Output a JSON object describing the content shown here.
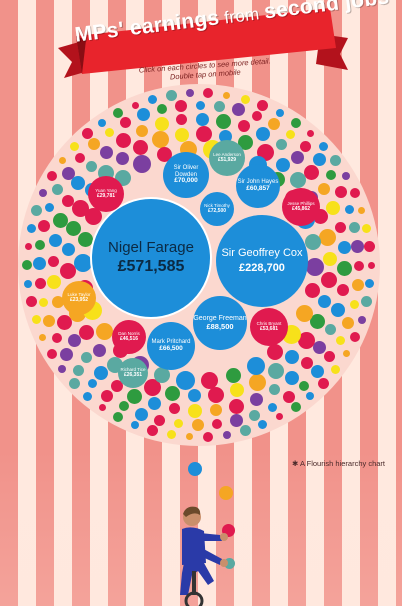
{
  "title_pre": "MPs' ",
  "title_bold": "earnings",
  "title_from": " from ",
  "title_post": "second jobs",
  "subtitle_line1": "Click on each circles to see more detail.",
  "subtitle_line2": "Double tap on mobile",
  "credit": "A Flourish hierarchy chart",
  "colors": {
    "red": "#e01a4f",
    "blue": "#1d8ed9",
    "orange": "#f5a623",
    "teal": "#5aa9a1",
    "green": "#2e9b3f",
    "yellow": "#f7e11a",
    "purple": "#7b3fa0",
    "banner_red": "#e8242c"
  },
  "mps": [
    {
      "name": "Nigel Farage",
      "value": "£571,585"
    },
    {
      "name": "Sir Geoffrey Cox",
      "value": "£228,700"
    },
    {
      "name": "George Freeman",
      "value": "£88,500"
    },
    {
      "name": "Sir Oliver Dowden",
      "value": "£70,000"
    },
    {
      "name": "Mark Pritchard",
      "value": "£66,500"
    },
    {
      "name": "Sir John Hayes",
      "value": "£60,857"
    },
    {
      "name": "Lee Anderson",
      "value": "£51,929"
    },
    {
      "name": "Chris Bryant",
      "value": "£53,681"
    },
    {
      "name": "Dan Norris",
      "value": "£46,516"
    },
    {
      "name": "Nick Timothy",
      "value": "£72,500"
    },
    {
      "name": "Jesse Phillips",
      "value": "£45,862"
    },
    {
      "name": "Yuan Yang",
      "value": "£29,781"
    },
    {
      "name": "Luke Taylor",
      "value": "£23,952"
    },
    {
      "name": "Richard Tice",
      "value": "£26,351"
    }
  ]
}
